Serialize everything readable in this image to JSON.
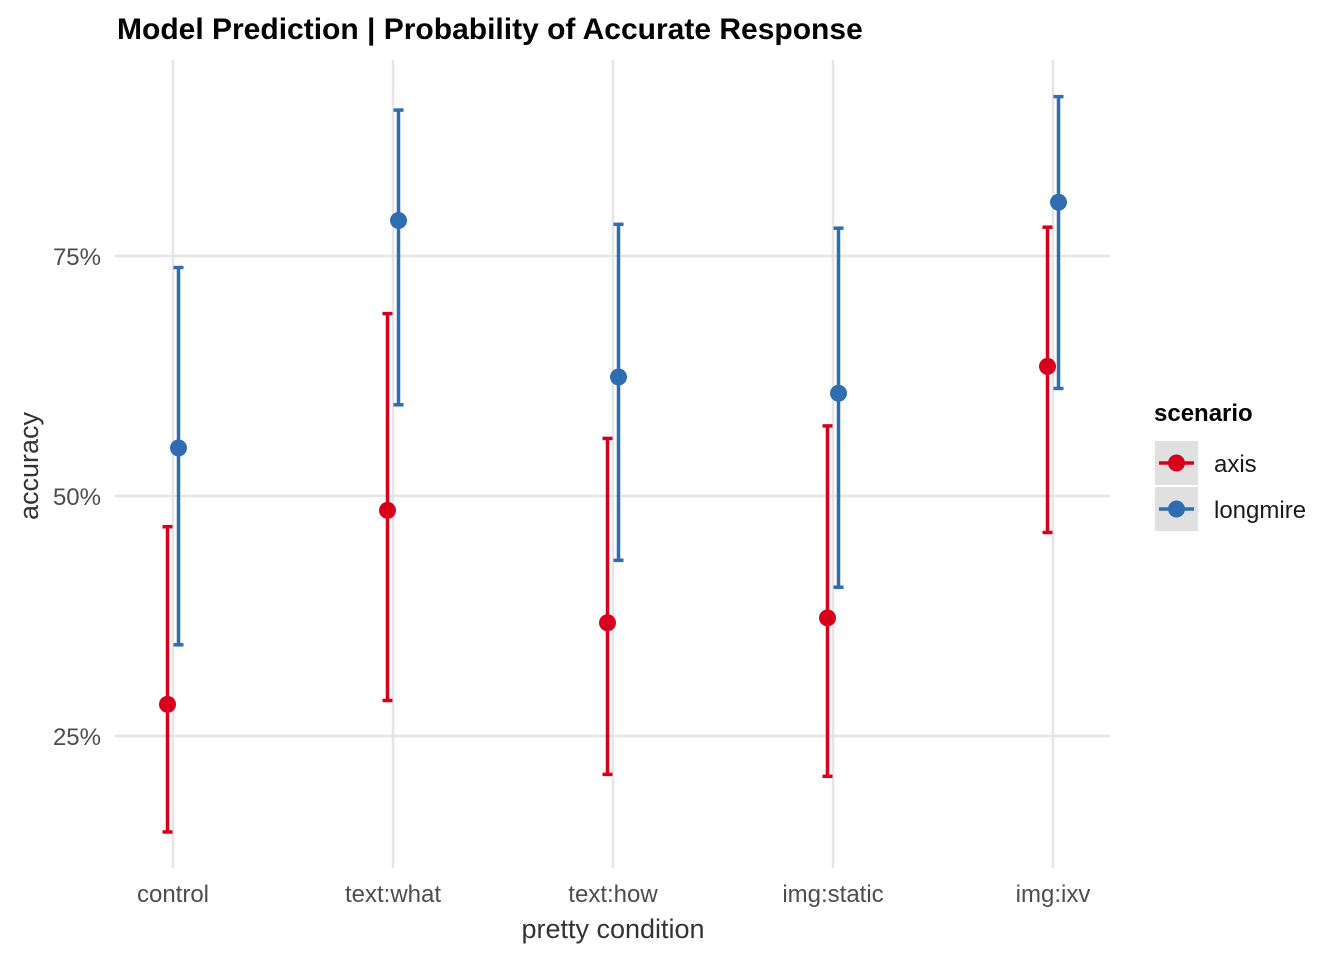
{
  "chart_data": {
    "type": "scatter",
    "title": "Model Prediction | Probability of Accurate Response",
    "xlabel": "pretty condition",
    "ylabel": "accuracy",
    "categories": [
      "control",
      "text:what",
      "text:how",
      "img:static",
      "img:ixv"
    ],
    "yticks": [
      0.25,
      0.5,
      0.75
    ],
    "ytick_labels": [
      "25%",
      "50%",
      "75%"
    ],
    "ylim": [
      0.12,
      0.95
    ],
    "grid": true,
    "legend": {
      "title": "scenario",
      "position": "right"
    },
    "series": [
      {
        "name": "axis",
        "color": "#d7001c",
        "values": [
          0.283,
          0.485,
          0.368,
          0.373,
          0.635
        ],
        "lower": [
          0.15,
          0.287,
          0.21,
          0.208,
          0.462
        ],
        "upper": [
          0.468,
          0.69,
          0.56,
          0.573,
          0.78
        ]
      },
      {
        "name": "longmire",
        "color": "#2e6db0",
        "values": [
          0.55,
          0.787,
          0.624,
          0.607,
          0.806
        ],
        "lower": [
          0.345,
          0.595,
          0.433,
          0.405,
          0.612
        ],
        "upper": [
          0.738,
          0.902,
          0.783,
          0.779,
          0.916
        ]
      }
    ]
  }
}
